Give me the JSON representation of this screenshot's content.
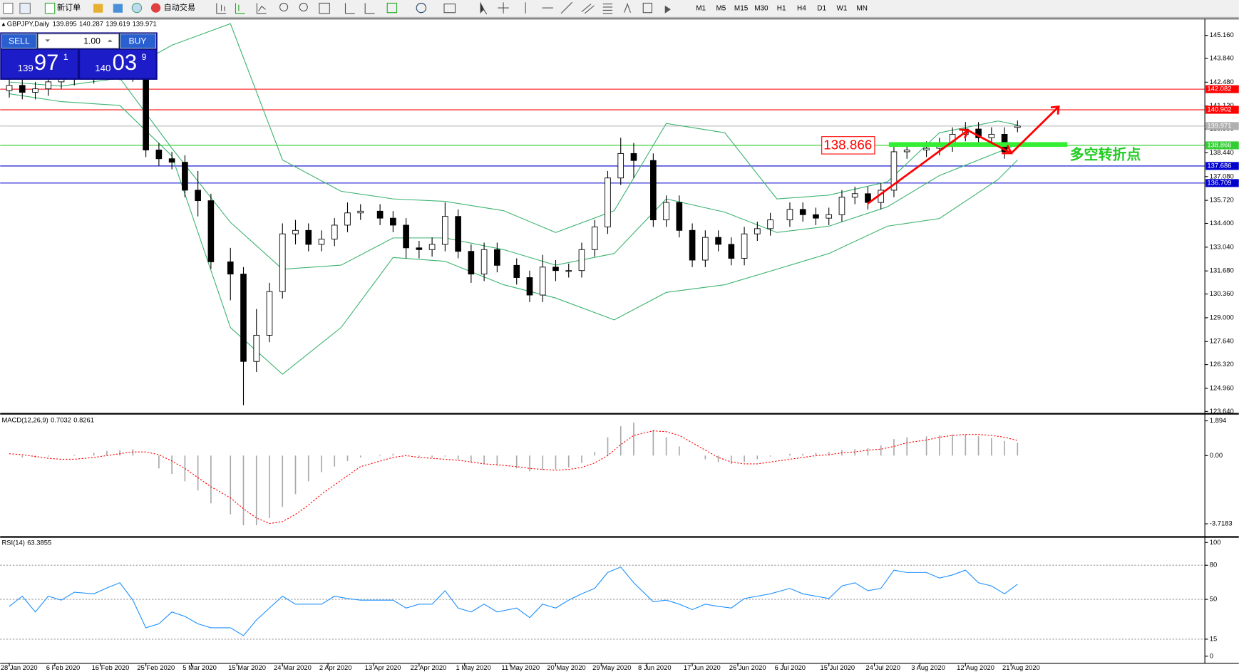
{
  "toolbar": {
    "new_order": "新订单",
    "auto_trading": "自动交易",
    "timeframes": [
      "M1",
      "M5",
      "M15",
      "M30",
      "H1",
      "H4",
      "D1",
      "W1",
      "MN"
    ]
  },
  "trade_panel": {
    "sell": "SELL",
    "buy": "BUY",
    "lots": "1.00",
    "sell_price": {
      "big": "139",
      "pips": "97",
      "point": "1"
    },
    "buy_price": {
      "big": "140",
      "pips": "03",
      "point": "9"
    }
  },
  "chart_data": {
    "type": "candlestick",
    "title": "GBPJPY,Daily",
    "x": [
      0,
      2,
      4,
      6,
      8,
      10,
      13,
      15,
      17,
      19,
      21,
      23,
      25,
      27,
      29,
      31,
      34,
      36,
      38,
      40,
      42,
      44,
      46,
      48,
      50,
      52,
      54,
      57,
      59,
      61,
      63,
      65,
      67,
      69,
      71,
      73,
      75,
      78,
      80,
      82,
      84,
      86,
      88,
      90,
      92,
      94,
      96,
      99,
      101,
      103,
      105,
      107,
      109,
      111,
      113,
      115,
      117,
      120,
      122,
      124,
      126,
      128,
      130,
      132,
      134,
      136,
      138,
      141,
      143,
      145,
      147,
      149,
      151,
      153,
      155
    ],
    "xlim": [
      -1.4,
      183.8
    ],
    "xticks": [
      {
        "value": 0,
        "label": "28 Jan 2020"
      },
      {
        "value": 7,
        "label": "6 Feb 2020"
      },
      {
        "value": 14,
        "label": "16 Feb 2020"
      },
      {
        "value": 21,
        "label": "25 Feb 2020"
      },
      {
        "value": 28,
        "label": "5 Mar 2020"
      },
      {
        "value": 35,
        "label": "15 Mar 2020"
      },
      {
        "value": 42,
        "label": "24 Mar 2020"
      },
      {
        "value": 49,
        "label": "2 Apr 2020"
      },
      {
        "value": 56,
        "label": "13 Apr 2020"
      },
      {
        "value": 63,
        "label": "22 Apr 2020"
      },
      {
        "value": 70,
        "label": "1 May 2020"
      },
      {
        "value": 77,
        "label": "11 May 2020"
      },
      {
        "value": 84,
        "label": "20 May 2020"
      },
      {
        "value": 91,
        "label": "29 May 2020"
      },
      {
        "value": 98,
        "label": "8 Jun 2020"
      },
      {
        "value": 105,
        "label": "17 Jun 2020"
      },
      {
        "value": 112,
        "label": "26 Jun 2020"
      },
      {
        "value": 119,
        "label": "6 Jul 2020"
      },
      {
        "value": 126,
        "label": "15 Jul 2020"
      },
      {
        "value": 133,
        "label": "24 Jul 2020"
      },
      {
        "value": 140,
        "label": "3 Aug 2020"
      },
      {
        "value": 147,
        "label": "12 Aug 2020"
      },
      {
        "value": 154,
        "label": "21 Aug 2020"
      }
    ],
    "open": [
      142.0,
      142.3,
      141.9,
      142.1,
      142.5,
      142.7,
      142.8,
      143.0,
      143.1,
      143.0,
      142.9,
      138.6,
      138.1,
      137.9,
      136.3,
      135.7,
      132.2,
      131.5,
      126.5,
      128.0,
      130.5,
      133.8,
      134.0,
      133.2,
      133.5,
      134.3,
      135.0,
      135.1,
      134.7,
      134.3,
      133.0,
      132.9,
      133.2,
      134.8,
      132.8,
      131.5,
      132.9,
      132.0,
      131.3,
      130.3,
      131.9,
      131.7,
      131.7,
      132.9,
      134.2,
      137.0,
      138.4,
      138.0,
      134.6,
      135.6,
      134.0,
      132.3,
      133.6,
      133.2,
      132.4,
      133.8,
      134.1,
      134.6,
      135.2,
      134.9,
      134.7,
      134.9,
      135.9,
      136.1,
      135.6,
      136.3,
      138.5,
      138.6,
      138.7,
      138.9,
      139.5,
      139.8,
      139.3,
      139.5,
      139.895
    ],
    "high": [
      142.7,
      142.7,
      142.5,
      142.9,
      143.1,
      143.2,
      143.4,
      143.5,
      143.5,
      143.6,
      143.3,
      139.0,
      138.5,
      138.3,
      137.4,
      136.1,
      133.0,
      131.9,
      129.5,
      131.0,
      134.4,
      134.6,
      134.4,
      134.0,
      134.7,
      135.6,
      135.5,
      135.5,
      135.1,
      134.7,
      133.4,
      133.6,
      135.6,
      135.2,
      133.2,
      133.3,
      133.3,
      132.4,
      131.7,
      132.6,
      132.3,
      132.1,
      133.3,
      134.6,
      137.4,
      139.3,
      139.0,
      138.4,
      136.0,
      136.0,
      134.4,
      134.0,
      134.0,
      133.6,
      134.2,
      134.5,
      135.0,
      135.6,
      135.6,
      135.3,
      135.3,
      136.3,
      136.5,
      136.5,
      136.7,
      138.9,
      139.0,
      139.1,
      139.3,
      139.9,
      140.2,
      140.2,
      139.9,
      139.9,
      140.287
    ],
    "low": [
      141.6,
      141.5,
      141.5,
      141.7,
      142.1,
      142.3,
      142.4,
      142.6,
      142.6,
      142.5,
      138.2,
      137.7,
      137.5,
      135.9,
      134.8,
      131.8,
      130.0,
      124.0,
      125.9,
      127.6,
      130.1,
      133.2,
      132.8,
      132.8,
      133.1,
      133.9,
      134.6,
      134.3,
      133.9,
      132.4,
      132.4,
      132.5,
      132.8,
      132.4,
      131.0,
      131.1,
      131.6,
      130.9,
      129.9,
      129.9,
      131.1,
      131.3,
      131.3,
      132.5,
      133.8,
      136.6,
      137.0,
      134.2,
      134.2,
      133.6,
      131.9,
      131.9,
      132.8,
      132.0,
      132.0,
      133.4,
      133.7,
      134.2,
      134.5,
      134.3,
      134.3,
      134.5,
      135.5,
      135.2,
      135.2,
      135.9,
      138.1,
      138.2,
      138.3,
      138.5,
      139.1,
      138.9,
      138.9,
      138.1,
      139.619
    ],
    "close": [
      142.3,
      141.9,
      142.1,
      142.5,
      142.7,
      142.8,
      143.0,
      143.1,
      143.0,
      142.9,
      138.6,
      138.1,
      137.9,
      136.3,
      135.7,
      132.2,
      131.5,
      126.5,
      128.0,
      130.5,
      133.8,
      134.0,
      133.2,
      133.5,
      134.3,
      135.0,
      135.1,
      134.7,
      134.3,
      133.0,
      132.9,
      133.2,
      134.8,
      132.8,
      131.5,
      132.9,
      132.0,
      131.3,
      130.3,
      131.9,
      131.7,
      131.7,
      132.9,
      134.2,
      137.0,
      138.4,
      138.0,
      134.6,
      135.6,
      134.0,
      132.3,
      133.6,
      133.2,
      132.4,
      133.8,
      134.1,
      134.6,
      135.2,
      134.9,
      134.7,
      134.9,
      135.9,
      136.1,
      135.6,
      136.3,
      138.5,
      138.6,
      138.7,
      138.9,
      139.5,
      139.8,
      139.3,
      139.5,
      138.5,
      139.971
    ],
    "up_color": "#ffffff",
    "down_color": "#000000",
    "outline_color": "#000000",
    "ylim": [
      123.55,
      146.1
    ],
    "yticks": [
      {
        "value": 123.64,
        "label": "123.640"
      },
      {
        "value": 124.96,
        "label": "124.960"
      },
      {
        "value": 126.32,
        "label": "126.320"
      },
      {
        "value": 127.64,
        "label": "127.640"
      },
      {
        "value": 129,
        "label": "129.000"
      },
      {
        "value": 130.36,
        "label": "130.360"
      },
      {
        "value": 131.68,
        "label": "131.680"
      },
      {
        "value": 133.04,
        "label": "133.040"
      },
      {
        "value": 134.4,
        "label": "134.400"
      },
      {
        "value": 135.72,
        "label": "135.720"
      },
      {
        "value": 137.08,
        "label": "137.080"
      },
      {
        "value": 138.44,
        "label": "138.440"
      },
      {
        "value": 139.8,
        "label": "139.800"
      },
      {
        "value": 141.12,
        "label": "141.120"
      },
      {
        "value": 142.48,
        "label": "142.480"
      },
      {
        "value": 143.84,
        "label": "143.840"
      },
      {
        "value": 145.16,
        "label": "145.160"
      }
    ],
    "bands": {
      "color": "#3cb371",
      "x": [
        0,
        8,
        17,
        25,
        34,
        42,
        51,
        59,
        67,
        76,
        84,
        93,
        101,
        110,
        118,
        126,
        135,
        143,
        152,
        155
      ],
      "upper": [
        143.06,
        143.06,
        142.93,
        144.6,
        145.83,
        138.03,
        136.24,
        135.8,
        135.66,
        135.13,
        133.88,
        135.13,
        140.12,
        139.59,
        135.8,
        136.02,
        136.78,
        139.59,
        140.26,
        140.03
      ],
      "middle": [
        142.49,
        142.26,
        142.71,
        138.7,
        134.46,
        131.78,
        132.01,
        133.57,
        133.57,
        132.9,
        132.01,
        132.68,
        135.8,
        135.04,
        133.88,
        134.24,
        135.35,
        137.14,
        138.47,
        138.92
      ],
      "lower": [
        141.82,
        141.37,
        141.15,
        138.26,
        128.44,
        125.77,
        128.44,
        132.45,
        132.23,
        130.89,
        130.13,
        128.88,
        130.45,
        130.89,
        131.78,
        132.68,
        134.24,
        134.68,
        136.91,
        138.03
      ]
    },
    "levels": [
      {
        "value": 142.082,
        "color": "#ff0000"
      },
      {
        "value": 140.902,
        "color": "#ff0000"
      },
      {
        "value": 139.971,
        "color": "#b0b0b0"
      },
      {
        "value": 138.866,
        "color": "#32cd32"
      },
      {
        "value": 137.686,
        "color": "#0000cd"
      },
      {
        "value": 136.709,
        "color": "#0000cd"
      }
    ],
    "pivot_label": "多空转折点",
    "macd": {
      "title": "MACD(12,26,9)",
      "histogram_color": "#a9a9a9",
      "signal_color": "#ff0000",
      "histogram": [
        0.0,
        -0.1,
        -0.1,
        -0.05,
        0.0,
        0.05,
        0.15,
        0.25,
        0.3,
        0.35,
        0.0,
        -0.7,
        -1.0,
        -1.4,
        -1.9,
        -2.6,
        -3.2,
        -3.8,
        -3.8,
        -3.4,
        -2.8,
        -2.1,
        -1.4,
        -0.9,
        -0.6,
        -0.3,
        -0.1,
        0.05,
        0.1,
        0.0,
        -0.1,
        -0.1,
        -0.05,
        -0.2,
        -0.4,
        -0.45,
        -0.55,
        -0.7,
        -0.85,
        -0.8,
        -0.75,
        -0.65,
        -0.4,
        0.2,
        1.0,
        1.6,
        1.8,
        1.4,
        1.0,
        0.5,
        0.0,
        -0.2,
        -0.35,
        -0.45,
        -0.35,
        -0.2,
        -0.05,
        0.1,
        0.1,
        0.15,
        0.2,
        0.3,
        0.35,
        0.4,
        0.55,
        0.9,
        1.0,
        1.05,
        1.1,
        1.15,
        1.15,
        1.05,
        0.95,
        0.8,
        0.7032
      ],
      "signal": [
        0.1,
        0.05,
        -0.05,
        -0.15,
        -0.2,
        -0.2,
        -0.1,
        0.0,
        0.1,
        0.2,
        0.2,
        0.05,
        -0.3,
        -0.7,
        -1.2,
        -1.7,
        -2.3,
        -2.9,
        -3.4,
        -3.7,
        -3.6,
        -3.2,
        -2.7,
        -2.1,
        -1.6,
        -1.1,
        -0.6,
        -0.3,
        -0.1,
        0.0,
        -0.1,
        -0.15,
        -0.2,
        -0.25,
        -0.35,
        -0.45,
        -0.5,
        -0.6,
        -0.7,
        -0.75,
        -0.8,
        -0.75,
        -0.65,
        -0.4,
        0.0,
        0.6,
        1.1,
        1.35,
        1.3,
        1.1,
        0.7,
        0.3,
        -0.1,
        -0.35,
        -0.45,
        -0.45,
        -0.35,
        -0.2,
        -0.1,
        0.0,
        0.05,
        0.15,
        0.2,
        0.3,
        0.35,
        0.5,
        0.7,
        0.85,
        1.0,
        1.1,
        1.15,
        1.15,
        1.1,
        1.0,
        0.8261
      ],
      "ylim": [
        -4.35,
        2.15
      ],
      "yticks": [
        1.894,
        {
          "value": 0,
          "label": "0.00"
        },
        -3.7183
      ]
    },
    "rsi": {
      "title": "RSI(14)",
      "color": "#1e90ff",
      "values": [
        43.8,
        52.8,
        38.9,
        52.8,
        49.3,
        56.3,
        54.9,
        60.0,
        64.6,
        49.3,
        25.0,
        28.5,
        38.9,
        35.0,
        28.5,
        25.0,
        25.0,
        18.1,
        31.9,
        42.4,
        52.8,
        45.8,
        45.8,
        45.8,
        52.8,
        50.7,
        49.3,
        49.3,
        49.3,
        42.4,
        45.8,
        45.8,
        57.6,
        42.4,
        38.9,
        45.8,
        38.9,
        42.4,
        34.0,
        45.8,
        42.4,
        49.3,
        54.9,
        59.7,
        73.6,
        78.5,
        64.6,
        47.9,
        49.3,
        45.8,
        41.0,
        45.8,
        43.8,
        42.4,
        50.7,
        52.8,
        54.9,
        59.7,
        54.9,
        52.8,
        50.7,
        61.8,
        64.6,
        57.6,
        59.7,
        75.7,
        73.6,
        73.6,
        68.8,
        71.5,
        75.7,
        64.6,
        61.8,
        54.9,
        63.3855
      ],
      "ylim": [
        -6.25,
        103.5
      ],
      "yticks": [
        100,
        80,
        50,
        15,
        0
      ],
      "levels": [
        80,
        50,
        15
      ]
    }
  }
}
